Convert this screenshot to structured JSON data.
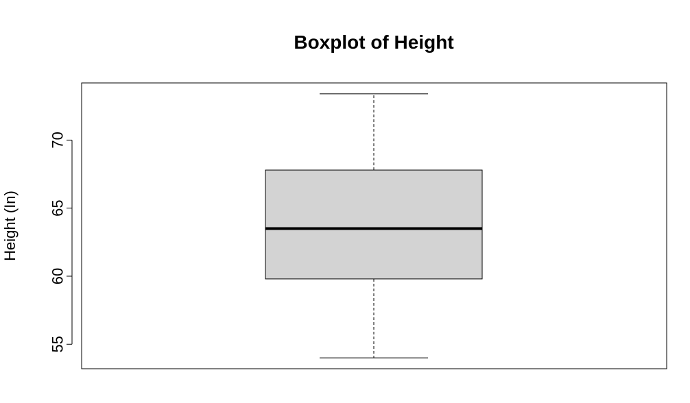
{
  "chart_data": {
    "type": "boxplot",
    "title": "Boxplot of Height",
    "xlabel": "",
    "ylabel": "Height (In)",
    "ylim": [
      53.2,
      74.2
    ],
    "yticks": [
      55,
      60,
      65,
      70
    ],
    "ytick_labels": [
      "55",
      "60",
      "65",
      "70"
    ],
    "box": {
      "min": 54,
      "q1": 59.8,
      "median": 63.5,
      "q3": 67.8,
      "max": 73.4
    },
    "grid": false,
    "colors": {
      "box_fill": "#d3d3d3",
      "stroke": "#000000"
    }
  }
}
